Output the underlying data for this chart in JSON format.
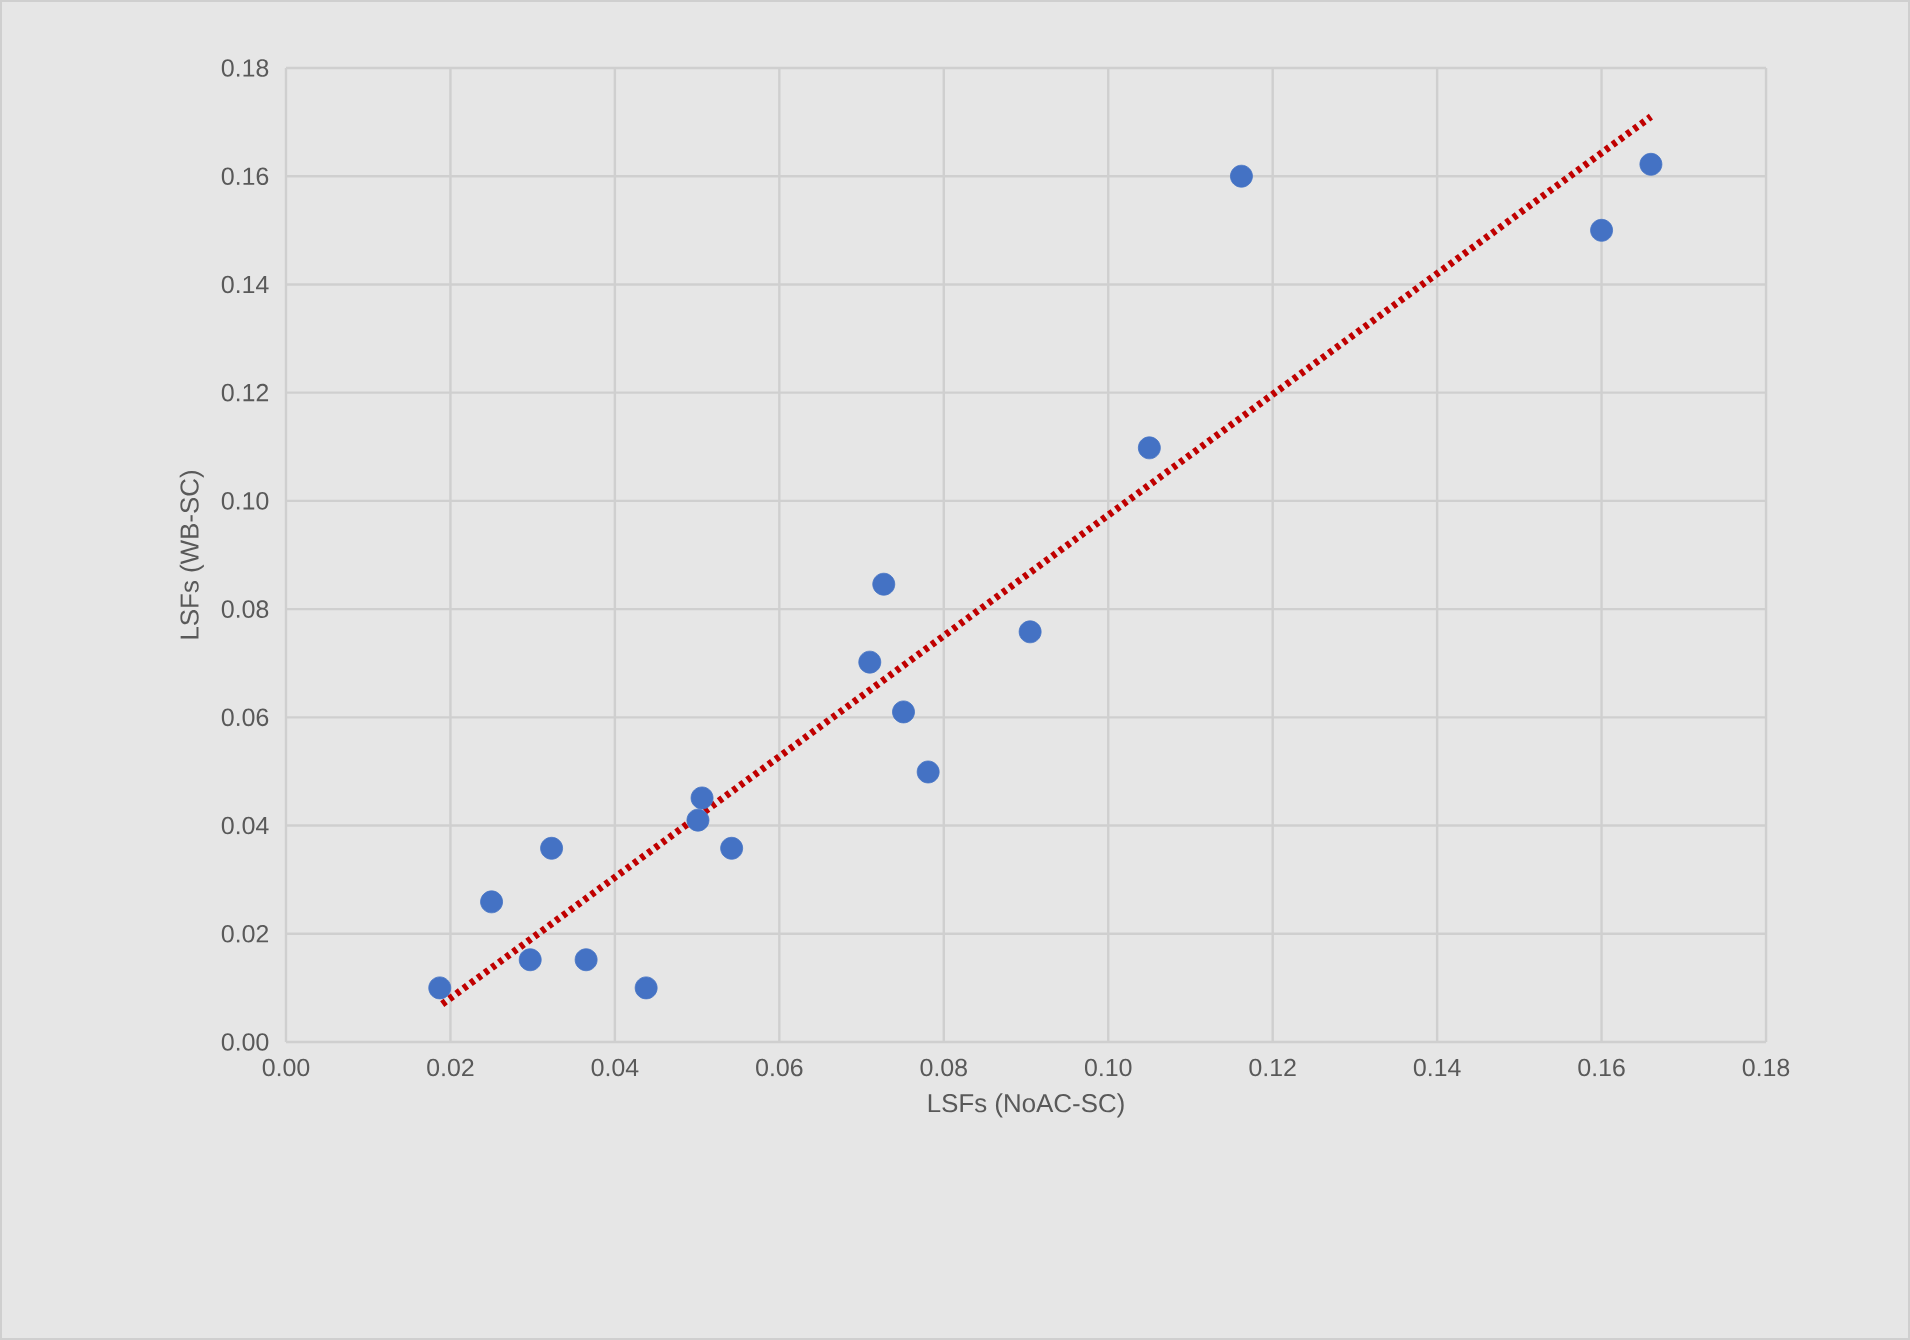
{
  "chart_data": {
    "type": "scatter",
    "xlabel": "LSFs (NoAC-SC)",
    "ylabel": "LSFs (WB-SC)",
    "grid": true,
    "legend": false,
    "marker": "circle",
    "xlim": [
      0,
      0.18
    ],
    "ylim": [
      0,
      0.18
    ],
    "xticks": [
      {
        "value": 0,
        "label": "0.00"
      },
      {
        "value": 0.02,
        "label": "0.02"
      },
      {
        "value": 0.04,
        "label": "0.04"
      },
      {
        "value": 0.06,
        "label": "0.06"
      },
      {
        "value": 0.08,
        "label": "0.08"
      },
      {
        "value": 0.1,
        "label": "0.10"
      },
      {
        "value": 0.12,
        "label": "0.12"
      },
      {
        "value": 0.14,
        "label": "0.14"
      },
      {
        "value": 0.16,
        "label": "0.16"
      },
      {
        "value": 0.18,
        "label": "0.18"
      }
    ],
    "yticks": [
      {
        "value": 0,
        "label": "0.00"
      },
      {
        "value": 0.02,
        "label": "0.02"
      },
      {
        "value": 0.04,
        "label": "0.04"
      },
      {
        "value": 0.06,
        "label": "0.06"
      },
      {
        "value": 0.08,
        "label": "0.08"
      },
      {
        "value": 0.1,
        "label": "0.10"
      },
      {
        "value": 0.12,
        "label": "0.12"
      },
      {
        "value": 0.14,
        "label": "0.14"
      },
      {
        "value": 0.16,
        "label": "0.16"
      },
      {
        "value": 0.18,
        "label": "0.18"
      }
    ],
    "series": [
      {
        "color": "#4472c4",
        "x": [
          0.0187,
          0.025,
          0.0297,
          0.0323,
          0.0365,
          0.0438,
          0.0501,
          0.0506,
          0.0542,
          0.071,
          0.0727,
          0.0751,
          0.0781,
          0.0905,
          0.105,
          0.1162,
          0.16,
          0.166
        ],
        "values": [
          0.01,
          0.0259,
          0.0152,
          0.0358,
          0.0152,
          0.01,
          0.041,
          0.0451,
          0.0358,
          0.0702,
          0.0846,
          0.061,
          0.0499,
          0.0758,
          0.1098,
          0.16,
          0.15,
          0.1622
        ]
      },
      {
        "type": "line",
        "color": "#c00000",
        "line_style": "dotted",
        "marker": "none",
        "x": [
          0.019,
          0.166
        ],
        "values": [
          0.007,
          0.171
        ]
      }
    ]
  }
}
